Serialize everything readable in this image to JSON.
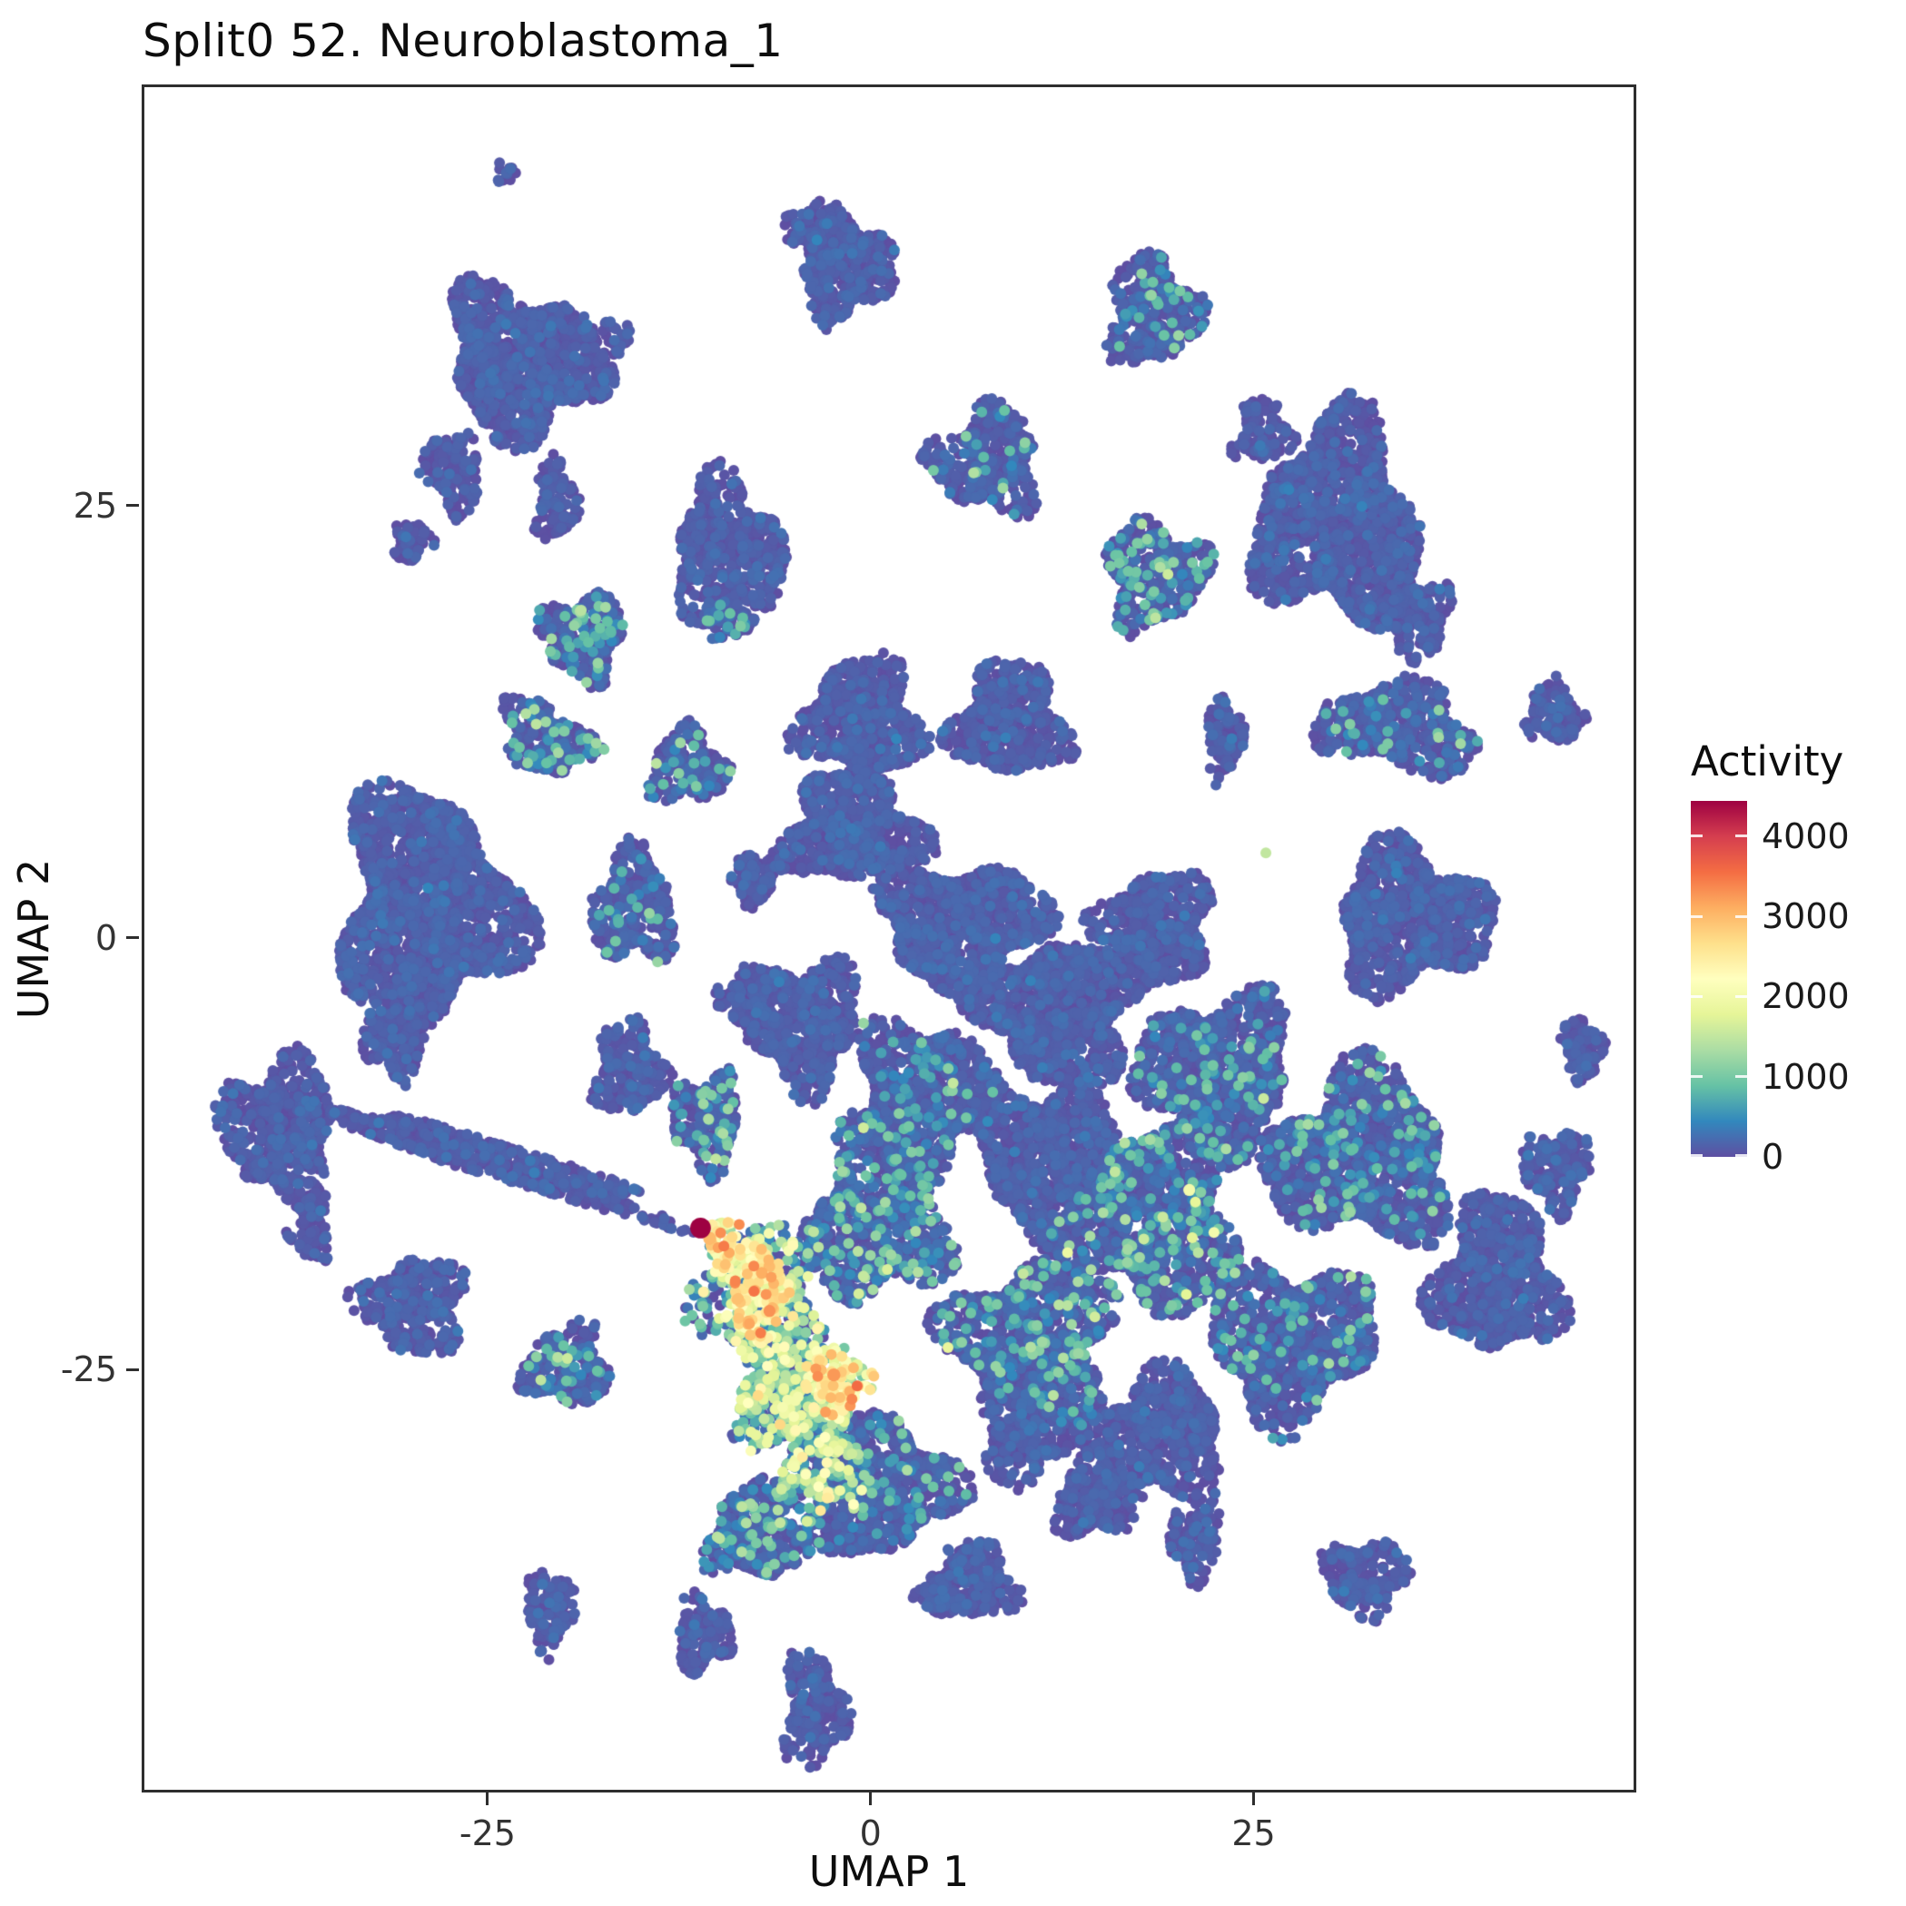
{
  "chart_data": {
    "type": "scatter",
    "title": "Split0 52. Neuroblastoma_1",
    "xlabel": "UMAP 1",
    "ylabel": "UMAP 2",
    "xlim": [
      -47.4,
      49.8
    ],
    "ylim": [
      -49.3,
      49.2
    ],
    "xticks": [
      -25,
      0,
      25
    ],
    "yticks": [
      -25,
      0,
      25
    ],
    "grid": false,
    "legend_position": "right",
    "colorbar": {
      "label": "Activity",
      "ticks": [
        0,
        1000,
        2000,
        3000,
        4000
      ],
      "domain": [
        0,
        4439
      ],
      "colormap_name": "spectral-reversed",
      "colormap": [
        "#5e4fa2",
        "#3288bd",
        "#66c2a5",
        "#abdda4",
        "#e6f598",
        "#ffffbf",
        "#fee08b",
        "#fdae61",
        "#f46d43",
        "#d53e4f",
        "#9e0142"
      ]
    },
    "activity_profiles": {
      "base": {
        "mix": [
          {
            "w": 1.0,
            "mean": 55,
            "sd": 95
          }
        ]
      },
      "teal": {
        "mix": [
          {
            "w": 0.84,
            "mean": 70,
            "sd": 110
          },
          {
            "w": 0.16,
            "mean": 700,
            "sd": 380
          }
        ]
      },
      "teal2": {
        "mix": [
          {
            "w": 0.92,
            "mean": 60,
            "sd": 100
          },
          {
            "w": 0.08,
            "mean": 650,
            "sd": 350
          }
        ]
      },
      "warm": {
        "mix": [
          {
            "w": 0.45,
            "mean": 150,
            "sd": 180
          },
          {
            "w": 0.3,
            "mean": 800,
            "sd": 350
          },
          {
            "w": 0.25,
            "mean": 1600,
            "sd": 450
          }
        ]
      },
      "hot": {
        "mix": [
          {
            "w": 0.12,
            "mean": 800,
            "sd": 300
          },
          {
            "w": 0.58,
            "mean": 1950,
            "sd": 350
          },
          {
            "w": 0.3,
            "mean": 2750,
            "sd": 400
          }
        ]
      }
    },
    "clusters": [
      {
        "x": -23.8,
        "y": 44.4,
        "rx": 0.7,
        "ry": 0.7,
        "rot": 0,
        "n": 14,
        "p": "base"
      },
      {
        "x": -1.6,
        "y": 38.8,
        "rx": 3.0,
        "ry": 3.0,
        "rot": 0,
        "n": 420,
        "p": "base"
      },
      {
        "x": -3.9,
        "y": 41.0,
        "rx": 1.6,
        "ry": 1.4,
        "rot": 0,
        "n": 90,
        "p": "base"
      },
      {
        "x": 18.4,
        "y": 36.2,
        "rx": 3.0,
        "ry": 3.1,
        "rot": 0,
        "n": 430,
        "p": "teal2"
      },
      {
        "x": -22.6,
        "y": 33.3,
        "rx": 5.0,
        "ry": 4.2,
        "rot": -15,
        "n": 1250,
        "p": "base"
      },
      {
        "x": -27.2,
        "y": 27.0,
        "rx": 1.9,
        "ry": 2.4,
        "rot": 20,
        "n": 160,
        "p": "base"
      },
      {
        "x": -20.6,
        "y": 25.2,
        "rx": 1.4,
        "ry": 2.4,
        "rot": 0,
        "n": 130,
        "p": "base"
      },
      {
        "x": -30.0,
        "y": 23.0,
        "rx": 1.2,
        "ry": 1.2,
        "rot": 0,
        "n": 60,
        "p": "base"
      },
      {
        "x": -16.6,
        "y": 34.8,
        "rx": 0.9,
        "ry": 0.9,
        "rot": 0,
        "n": 30,
        "p": "base"
      },
      {
        "x": 7.6,
        "y": 27.6,
        "rx": 3.4,
        "ry": 3.0,
        "rot": 0,
        "n": 470,
        "p": "teal2"
      },
      {
        "x": 30.5,
        "y": 24.0,
        "rx": 5.2,
        "ry": 5.8,
        "rot": 10,
        "n": 1500,
        "p": "base"
      },
      {
        "x": 25.6,
        "y": 29.2,
        "rx": 1.8,
        "ry": 1.8,
        "rot": 0,
        "n": 140,
        "p": "base"
      },
      {
        "x": 35.6,
        "y": 18.5,
        "rx": 2.2,
        "ry": 2.2,
        "rot": 0,
        "n": 200,
        "p": "base"
      },
      {
        "x": -9.3,
        "y": 22.4,
        "rx": 3.5,
        "ry": 4.0,
        "rot": 10,
        "n": 620,
        "p": "base"
      },
      {
        "x": -9.2,
        "y": 18.4,
        "rx": 1.6,
        "ry": 1.2,
        "rot": 0,
        "n": 90,
        "p": "teal"
      },
      {
        "x": 18.6,
        "y": 21.0,
        "rx": 3.2,
        "ry": 3.0,
        "rot": 0,
        "n": 430,
        "p": "teal"
      },
      {
        "x": -18.8,
        "y": 17.4,
        "rx": 2.7,
        "ry": 2.4,
        "rot": 0,
        "n": 300,
        "p": "teal"
      },
      {
        "x": -21.2,
        "y": 11.6,
        "rx": 3.0,
        "ry": 1.9,
        "rot": -25,
        "n": 280,
        "p": "teal"
      },
      {
        "x": -11.9,
        "y": 9.9,
        "rx": 2.5,
        "ry": 2.1,
        "rot": 0,
        "n": 230,
        "p": "teal2"
      },
      {
        "x": -0.6,
        "y": 12.7,
        "rx": 3.9,
        "ry": 3.3,
        "rot": 0,
        "n": 620,
        "p": "base"
      },
      {
        "x": 9.1,
        "y": 12.5,
        "rx": 3.6,
        "ry": 3.2,
        "rot": 0,
        "n": 560,
        "p": "base"
      },
      {
        "x": 34.4,
        "y": 12.1,
        "rx": 5.2,
        "ry": 2.4,
        "rot": -8,
        "n": 520,
        "p": "teal2"
      },
      {
        "x": 23.1,
        "y": 11.5,
        "rx": 1.2,
        "ry": 2.3,
        "rot": 0,
        "n": 120,
        "p": "base"
      },
      {
        "x": 44.6,
        "y": 13.0,
        "rx": 1.8,
        "ry": 1.8,
        "rot": 0,
        "n": 140,
        "p": "base"
      },
      {
        "x": -29.0,
        "y": 1.7,
        "rx": 5.6,
        "ry": 6.6,
        "rot": 5,
        "n": 2100,
        "p": "base"
      },
      {
        "x": -31.0,
        "y": -5.8,
        "rx": 2.0,
        "ry": 2.2,
        "rot": 0,
        "n": 180,
        "p": "base"
      },
      {
        "x": -15.5,
        "y": 1.8,
        "rx": 2.6,
        "ry": 3.2,
        "rot": 0,
        "n": 380,
        "p": "teal2"
      },
      {
        "x": -7.6,
        "y": 3.4,
        "rx": 1.5,
        "ry": 1.5,
        "rot": 0,
        "n": 110,
        "p": "base"
      },
      {
        "x": -15.8,
        "y": -7.6,
        "rx": 2.2,
        "ry": 2.7,
        "rot": 0,
        "n": 260,
        "p": "base"
      },
      {
        "x": -7.9,
        "y": -3.5,
        "rx": 1.8,
        "ry": 1.8,
        "rot": 0,
        "n": 150,
        "p": "base"
      },
      {
        "x": -1.2,
        "y": 6.3,
        "rx": 4.4,
        "ry": 3.1,
        "rot": 0,
        "n": 800,
        "p": "base"
      },
      {
        "x": 6.0,
        "y": 0.7,
        "rx": 5.3,
        "ry": 3.6,
        "rot": 0,
        "n": 1150,
        "p": "base"
      },
      {
        "x": 12.3,
        "y": -4.2,
        "rx": 5.3,
        "ry": 4.0,
        "rot": 0,
        "n": 1150,
        "p": "base"
      },
      {
        "x": 18.7,
        "y": 0.7,
        "rx": 3.6,
        "ry": 3.1,
        "rot": 0,
        "n": 620,
        "p": "base"
      },
      {
        "x": 22.6,
        "y": -7.7,
        "rx": 4.9,
        "ry": 4.4,
        "rot": 0,
        "n": 1150,
        "p": "teal2"
      },
      {
        "x": 35.3,
        "y": 1.1,
        "rx": 4.9,
        "ry": 4.0,
        "rot": 0,
        "n": 980,
        "p": "base"
      },
      {
        "x": 32.0,
        "y": -12.7,
        "rx": 5.8,
        "ry": 4.9,
        "rot": 0,
        "n": 1400,
        "p": "teal2"
      },
      {
        "x": 40.9,
        "y": -19.7,
        "rx": 4.0,
        "ry": 4.4,
        "rot": 0,
        "n": 800,
        "p": "base"
      },
      {
        "x": 44.8,
        "y": -13.4,
        "rx": 2.2,
        "ry": 2.2,
        "rot": 0,
        "n": 220,
        "p": "base"
      },
      {
        "x": 27.4,
        "y": -23.2,
        "rx": 5.3,
        "ry": 4.4,
        "rot": 0,
        "n": 1050,
        "p": "teal2"
      },
      {
        "x": 18.7,
        "y": -16.2,
        "rx": 5.3,
        "ry": 5.3,
        "rot": 0,
        "n": 1300,
        "p": "teal"
      },
      {
        "x": 11.5,
        "y": -12.7,
        "rx": 4.4,
        "ry": 4.4,
        "rot": 0,
        "n": 950,
        "p": "base"
      },
      {
        "x": 3.6,
        "y": -9.2,
        "rx": 4.4,
        "ry": 4.4,
        "rot": 0,
        "n": 950,
        "p": "teal2"
      },
      {
        "x": -4.4,
        "y": -4.9,
        "rx": 3.6,
        "ry": 3.6,
        "rot": 0,
        "n": 620,
        "p": "base"
      },
      {
        "x": 0.4,
        "y": -16.2,
        "rx": 4.4,
        "ry": 4.9,
        "rot": 0,
        "n": 950,
        "p": "teal"
      },
      {
        "x": 10.7,
        "y": -23.2,
        "rx": 5.3,
        "ry": 4.4,
        "rot": 0,
        "n": 1050,
        "p": "teal"
      },
      {
        "x": 18.7,
        "y": -28.9,
        "rx": 4.4,
        "ry": 3.6,
        "rot": 0,
        "n": 700,
        "p": "base"
      },
      {
        "x": 14.7,
        "y": -32.4,
        "rx": 2.7,
        "ry": 2.2,
        "rot": 0,
        "n": 260,
        "p": "base"
      },
      {
        "x": -25.4,
        "y": -12.7,
        "rx": 13.0,
        "ry": 1.0,
        "rot": -15,
        "n": 650,
        "p": "base"
      },
      {
        "x": -38.5,
        "y": -11.1,
        "rx": 3.6,
        "ry": 4.0,
        "rot": 0,
        "n": 580,
        "p": "base"
      },
      {
        "x": -36.5,
        "y": -16.9,
        "rx": 1.3,
        "ry": 1.8,
        "rot": 0,
        "n": 80,
        "p": "base"
      },
      {
        "x": -29.8,
        "y": -21.3,
        "rx": 3.4,
        "ry": 2.7,
        "rot": 0,
        "n": 380,
        "p": "base"
      },
      {
        "x": -19.8,
        "y": -24.8,
        "rx": 2.7,
        "ry": 2.3,
        "rot": 0,
        "n": 270,
        "p": "teal"
      },
      {
        "x": -10.7,
        "y": -10.6,
        "rx": 2.2,
        "ry": 2.7,
        "rot": 0,
        "n": 260,
        "p": "teal"
      },
      {
        "x": -9.8,
        "y": -17.3,
        "rx": 1.2,
        "ry": 1.2,
        "rot": 0,
        "n": 40,
        "p": "hot"
      },
      {
        "x": -7.5,
        "y": -20.4,
        "rx": 1.9,
        "ry": 3.2,
        "rot": 18,
        "n": 240,
        "p": "hot"
      },
      {
        "x": -2.1,
        "y": -25.7,
        "rx": 1.8,
        "ry": 2.1,
        "rot": 0,
        "n": 140,
        "p": "hot"
      },
      {
        "x": -7.0,
        "y": -21.0,
        "rx": 4.0,
        "ry": 4.4,
        "rot": 10,
        "n": 420,
        "p": "warm"
      },
      {
        "x": -3.2,
        "y": -31.0,
        "rx": 3.1,
        "ry": 2.7,
        "rot": 0,
        "n": 260,
        "p": "warm"
      },
      {
        "x": -5.2,
        "y": -26.8,
        "rx": 3.6,
        "ry": 3.1,
        "rot": 0,
        "n": 520,
        "p": "warm"
      },
      {
        "x": 0.4,
        "y": -31.7,
        "rx": 4.9,
        "ry": 4.0,
        "rot": 0,
        "n": 850,
        "p": "teal2"
      },
      {
        "x": -7.5,
        "y": -34.5,
        "rx": 3.1,
        "ry": 2.7,
        "rot": 0,
        "n": 400,
        "p": "teal"
      },
      {
        "x": 6.7,
        "y": -37.3,
        "rx": 2.7,
        "ry": 2.2,
        "rot": 0,
        "n": 260,
        "p": "base"
      },
      {
        "x": 9.9,
        "y": -28.9,
        "rx": 2.7,
        "ry": 2.7,
        "rot": 0,
        "n": 300,
        "p": "base"
      },
      {
        "x": -20.9,
        "y": -38.9,
        "rx": 1.6,
        "ry": 2.3,
        "rot": 0,
        "n": 140,
        "p": "base"
      },
      {
        "x": -11.0,
        "y": -40.3,
        "rx": 1.8,
        "ry": 2.0,
        "rot": 0,
        "n": 150,
        "p": "base"
      },
      {
        "x": -3.7,
        "y": -44.7,
        "rx": 1.9,
        "ry": 3.4,
        "rot": 0,
        "n": 240,
        "p": "base"
      },
      {
        "x": 4.5,
        "y": -38.0,
        "rx": 1.3,
        "ry": 1.3,
        "rot": 0,
        "n": 90,
        "p": "base"
      },
      {
        "x": 21.2,
        "y": -34.9,
        "rx": 1.6,
        "ry": 2.1,
        "rot": 0,
        "n": 140,
        "p": "base"
      },
      {
        "x": 32.3,
        "y": -37.0,
        "rx": 2.7,
        "ry": 2.1,
        "rot": 0,
        "n": 230,
        "p": "base"
      },
      {
        "x": 46.4,
        "y": -6.5,
        "rx": 1.4,
        "ry": 1.8,
        "rot": 0,
        "n": 110,
        "p": "base"
      }
    ],
    "highlight_points": [
      {
        "x": -11.1,
        "y": -16.8,
        "act": 4439,
        "r": 1.9
      },
      {
        "x": -10.5,
        "y": -17.4,
        "act": 3000,
        "r": 1.2
      },
      {
        "x": -10.0,
        "y": -17.0,
        "act": 2600,
        "r": 1.0
      },
      {
        "x": -7.1,
        "y": -19.4,
        "act": 3100,
        "r": 1.1
      },
      {
        "x": -6.6,
        "y": -21.6,
        "act": 3300,
        "r": 1.1
      },
      {
        "x": -2.4,
        "y": -25.3,
        "act": 3250,
        "r": 1.2
      },
      {
        "x": -2.0,
        "y": -26.6,
        "act": 2950,
        "r": 1.0
      },
      {
        "x": 20.8,
        "y": -14.6,
        "act": 2000,
        "r": 1.1
      },
      {
        "x": 21.2,
        "y": -15.3,
        "act": 1800,
        "r": 1.0
      },
      {
        "x": 25.8,
        "y": 4.9,
        "act": 1500,
        "r": 1.0
      },
      {
        "x": -13.9,
        "y": -1.4,
        "act": 1200,
        "r": 1.0
      },
      {
        "x": -10.1,
        "y": -12.8,
        "act": 1500,
        "r": 1.0
      }
    ]
  },
  "colors": {
    "background": "#ffffff",
    "panel_border": "#2e2e2e",
    "title_text": "#0d0d0d",
    "axis_text": "#333333"
  }
}
